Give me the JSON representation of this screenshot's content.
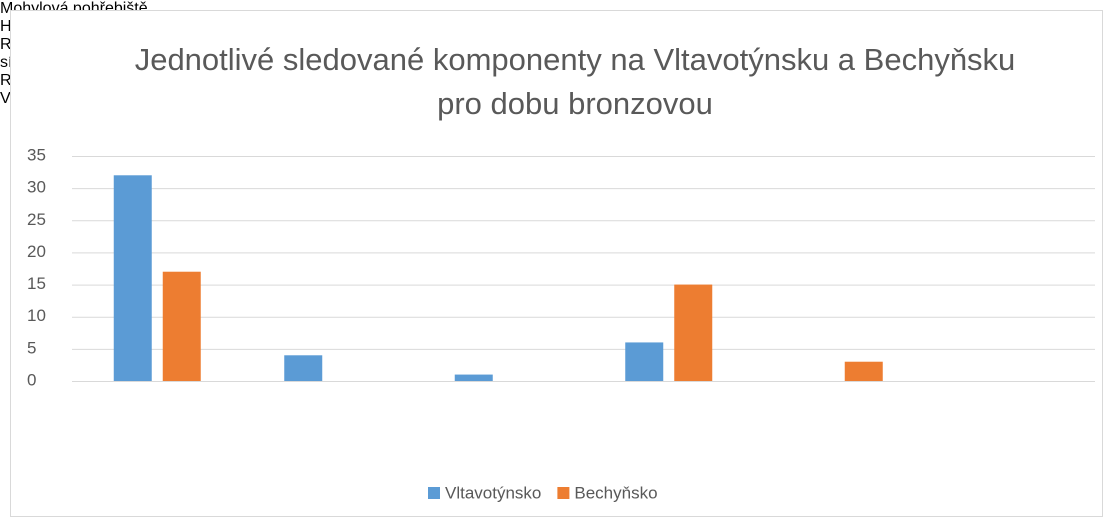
{
  "chart_data": {
    "type": "bar",
    "title": "Jednotlivé sledované komponenty na Vltavotýnsku a Bechyňsku pro dobu bronzovou",
    "categories": [
      "Mohylová pohřebiště",
      "Hradiště",
      "Rovinná opevněná sídliště",
      "Rovinná sídliště",
      "Výšinná sídliště",
      null
    ],
    "series": [
      {
        "name": "Vltavotýnsko",
        "color": "#5b9bd5",
        "values": [
          32,
          4,
          1,
          6,
          null,
          null
        ]
      },
      {
        "name": "Bechyňsko",
        "color": "#ed7d31",
        "values": [
          17,
          null,
          null,
          15,
          3,
          null
        ]
      }
    ],
    "ylim": [
      0,
      35
    ],
    "yticks": [
      0,
      5,
      10,
      15,
      20,
      25,
      30,
      35
    ],
    "grid": true,
    "legend": "bottom"
  }
}
